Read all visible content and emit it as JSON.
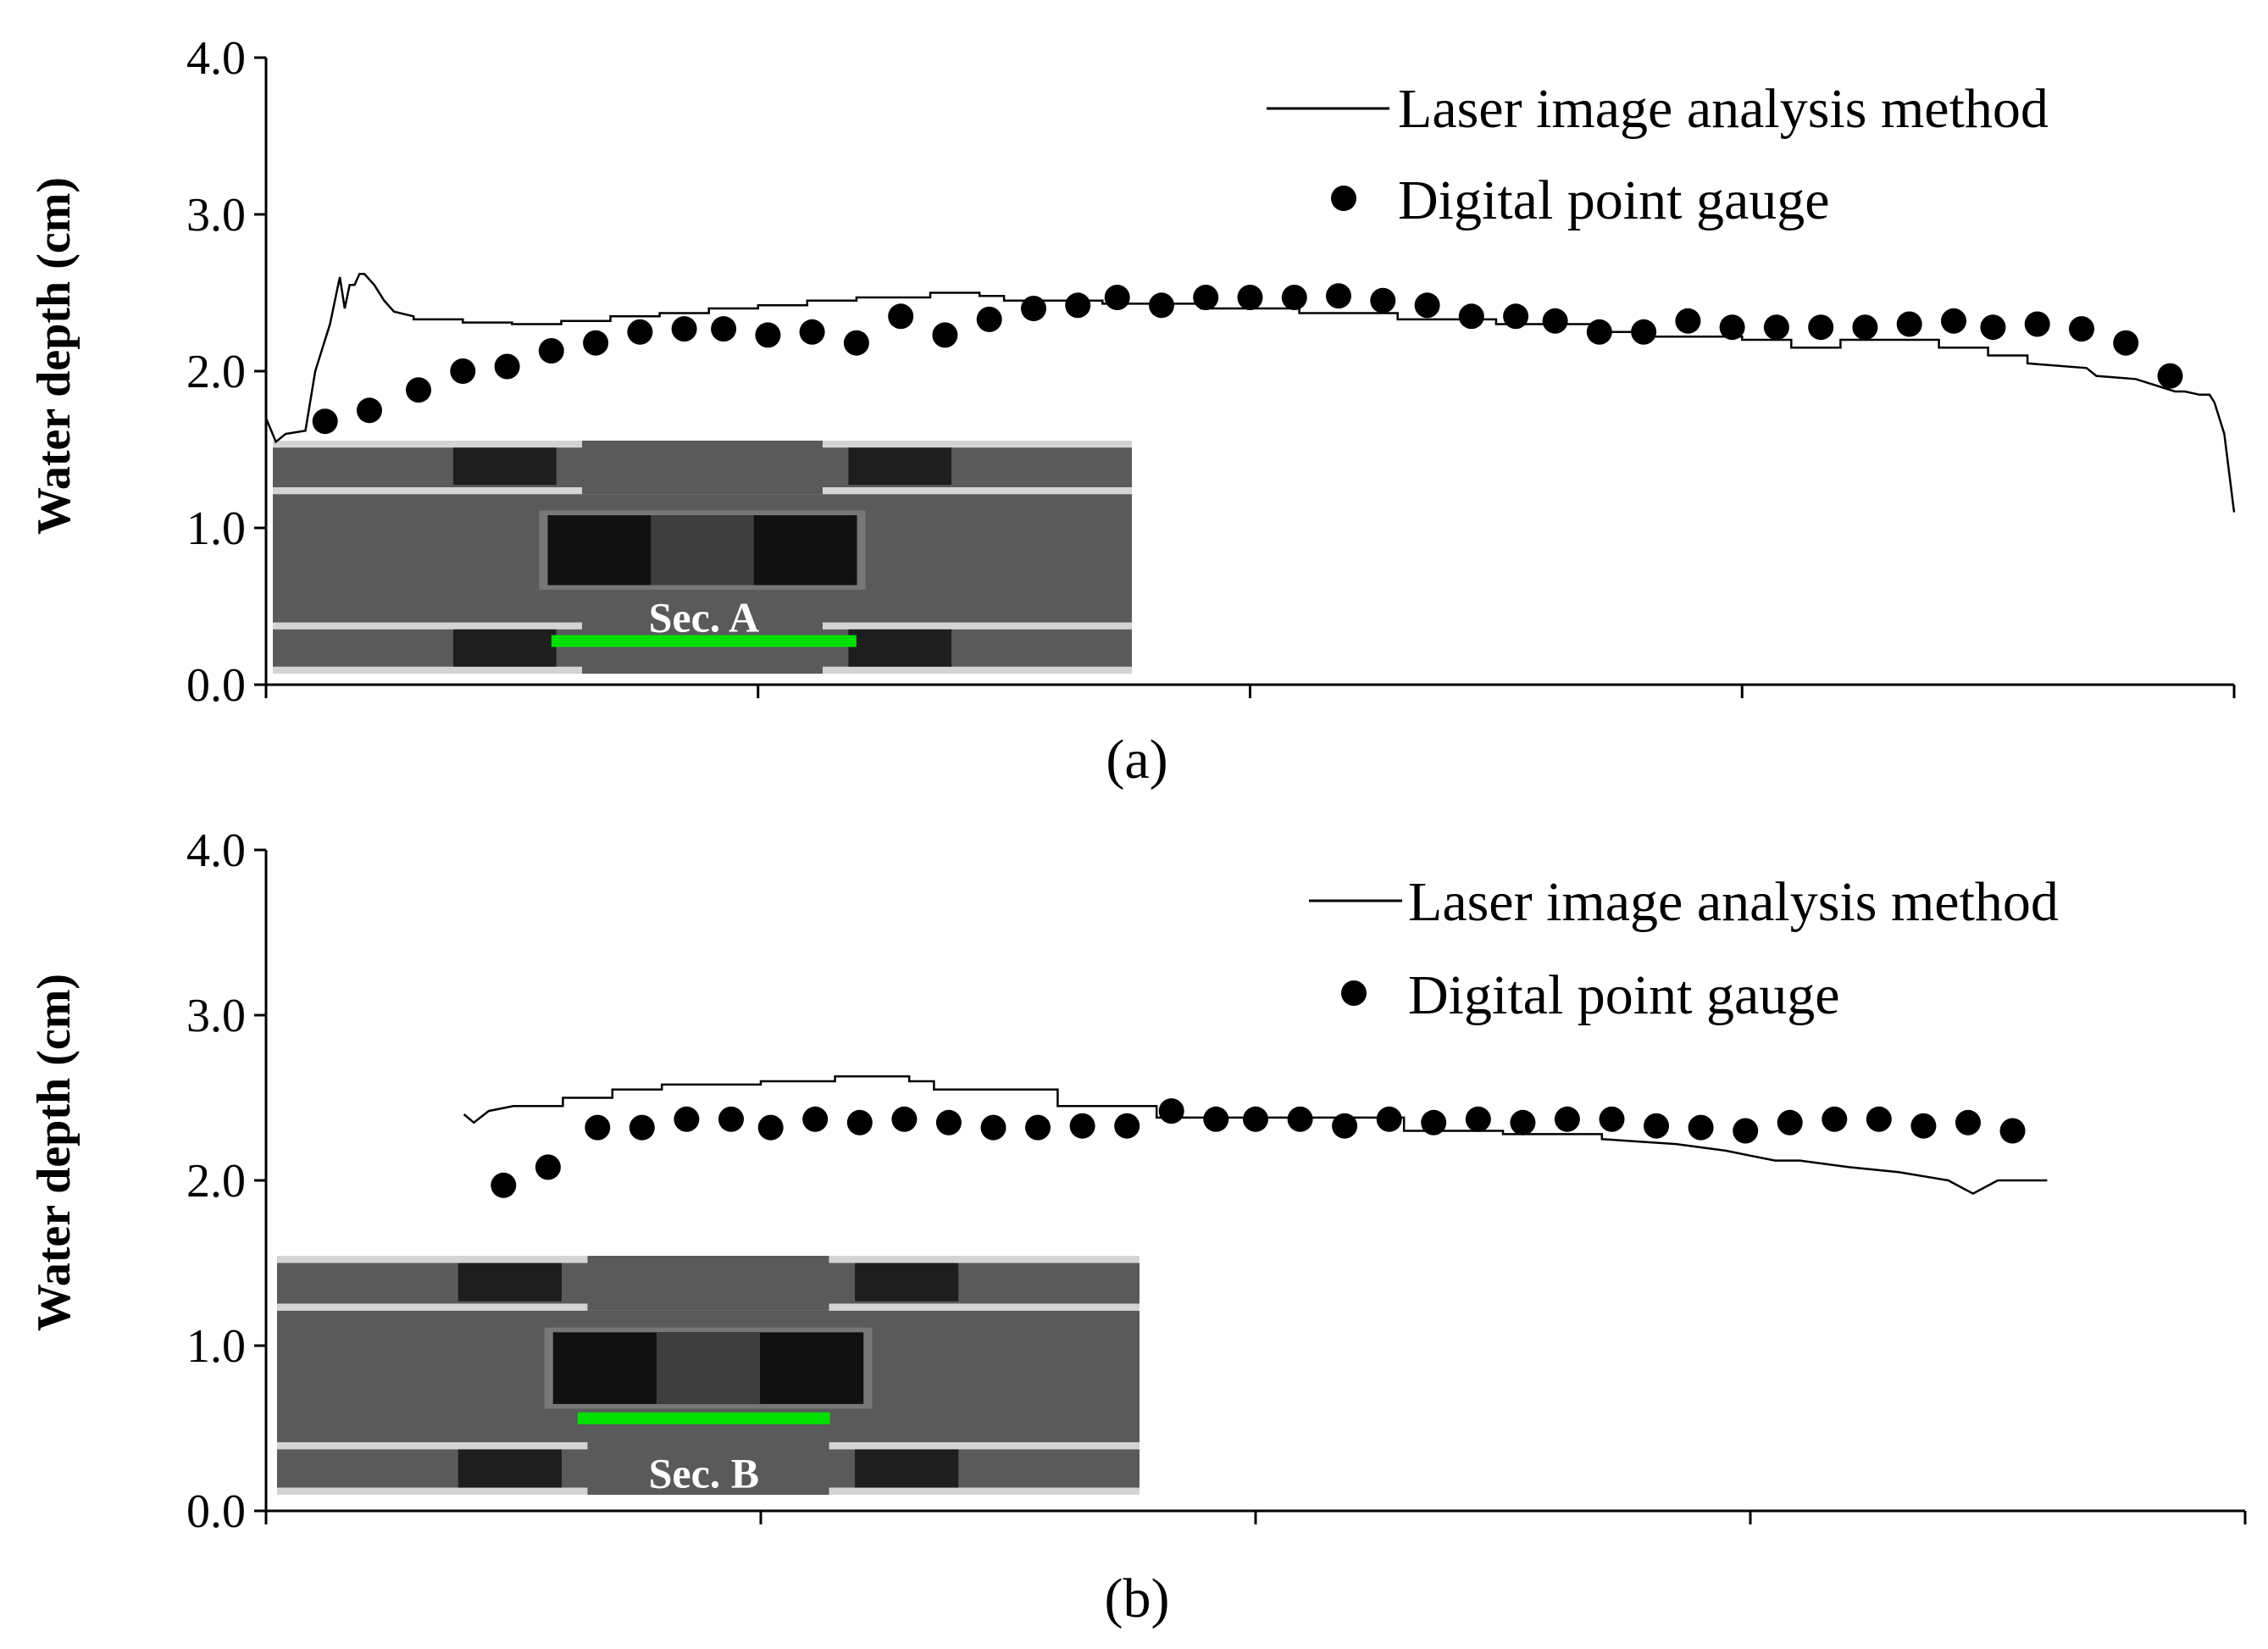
{
  "figure": {
    "panel_labels": [
      "(a)",
      "(b)"
    ],
    "colors": {
      "line": "#000000",
      "points": "#000000",
      "section_marker": "#00e000",
      "inset_bg": "#5a5a5a"
    }
  },
  "chart_data": [
    {
      "type": "line",
      "panel": "(a)",
      "ylabel": "Water depth (cm)",
      "xlabel": "",
      "ylim": [
        0,
        4
      ],
      "xlim": [
        0,
        4
      ],
      "yticks": [
        "0.0",
        "1.0",
        "2.0",
        "3.0",
        "4.0"
      ],
      "xticks": [
        0,
        1,
        2,
        3,
        4
      ],
      "grid": false,
      "legend_position": "top-right",
      "inset": {
        "label": "Sec. A",
        "marker_span": [
          0.58,
          1.2
        ]
      },
      "series": [
        {
          "name": "Laser image analysis method",
          "style": "line",
          "x": [
            0,
            0.02,
            0.04,
            0.08,
            0.1,
            0.13,
            0.15,
            0.16,
            0.17,
            0.18,
            0.19,
            0.2,
            0.22,
            0.24,
            0.26,
            0.3,
            0.3,
            0.34,
            0.4,
            0.4,
            0.5,
            0.5,
            0.6,
            0.6,
            0.7,
            0.7,
            0.8,
            0.8,
            0.9,
            0.9,
            1.0,
            1.0,
            1.1,
            1.1,
            1.2,
            1.2,
            1.35,
            1.35,
            1.45,
            1.45,
            1.5,
            1.5,
            1.7,
            1.7,
            1.9,
            1.9,
            2.1,
            2.1,
            2.3,
            2.3,
            2.5,
            2.5,
            2.7,
            2.7,
            2.8,
            2.8,
            3.0,
            3.0,
            3.1,
            3.1,
            3.2,
            3.2,
            3.4,
            3.4,
            3.5,
            3.5,
            3.58,
            3.58,
            3.7,
            3.72,
            3.8,
            3.85,
            3.88,
            3.9,
            3.93,
            3.95,
            3.96,
            3.98,
            3.99,
            4.0
          ],
          "y": [
            1.7,
            1.55,
            1.6,
            1.62,
            2.0,
            2.3,
            2.6,
            2.4,
            2.55,
            2.55,
            2.62,
            2.62,
            2.55,
            2.45,
            2.38,
            2.35,
            2.33,
            2.33,
            2.33,
            2.31,
            2.31,
            2.3,
            2.3,
            2.32,
            2.32,
            2.35,
            2.35,
            2.37,
            2.37,
            2.4,
            2.4,
            2.42,
            2.42,
            2.45,
            2.45,
            2.47,
            2.47,
            2.5,
            2.5,
            2.48,
            2.48,
            2.45,
            2.45,
            2.43,
            2.43,
            2.4,
            2.4,
            2.37,
            2.37,
            2.33,
            2.33,
            2.3,
            2.3,
            2.25,
            2.25,
            2.22,
            2.22,
            2.2,
            2.2,
            2.15,
            2.15,
            2.2,
            2.2,
            2.15,
            2.15,
            2.1,
            2.1,
            2.05,
            2.02,
            1.97,
            1.95,
            1.9,
            1.87,
            1.87,
            1.85,
            1.85,
            1.8,
            1.6,
            1.35,
            1.1
          ]
        },
        {
          "name": "Digital point gauge",
          "style": "scatter",
          "x": [
            0.12,
            0.21,
            0.31,
            0.4,
            0.49,
            0.58,
            0.67,
            0.76,
            0.85,
            0.93,
            1.02,
            1.11,
            1.2,
            1.29,
            1.38,
            1.47,
            1.56,
            1.65,
            1.73,
            1.82,
            1.91,
            2.0,
            2.09,
            2.18,
            2.27,
            2.36,
            2.45,
            2.54,
            2.62,
            2.71,
            2.8,
            2.89,
            2.98,
            3.07,
            3.16,
            3.25,
            3.34,
            3.43,
            3.51,
            3.6,
            3.69,
            3.78,
            3.87
          ],
          "y": [
            1.68,
            1.75,
            1.88,
            2.0,
            2.03,
            2.13,
            2.18,
            2.25,
            2.27,
            2.27,
            2.23,
            2.25,
            2.18,
            2.35,
            2.23,
            2.33,
            2.4,
            2.42,
            2.47,
            2.42,
            2.47,
            2.47,
            2.47,
            2.48,
            2.45,
            2.42,
            2.35,
            2.35,
            2.32,
            2.25,
            2.25,
            2.32,
            2.28,
            2.28,
            2.28,
            2.28,
            2.3,
            2.32,
            2.28,
            2.3,
            2.27,
            2.18,
            1.97
          ]
        }
      ]
    },
    {
      "type": "line",
      "panel": "(b)",
      "ylabel": "Water depth (cm)",
      "xlabel": "",
      "ylim": [
        0,
        4
      ],
      "xlim": [
        0,
        4
      ],
      "yticks": [
        "0.0",
        "1.0",
        "2.0",
        "3.0",
        "4.0"
      ],
      "xticks": [
        0,
        1,
        2,
        3,
        4
      ],
      "grid": false,
      "legend_position": "top-right",
      "inset": {
        "label": "Sec. B",
        "marker_span": [
          0.63,
          1.14
        ]
      },
      "series": [
        {
          "name": "Laser image analysis method",
          "style": "line",
          "x": [
            0.4,
            0.42,
            0.45,
            0.5,
            0.6,
            0.6,
            0.7,
            0.7,
            0.8,
            0.8,
            1.0,
            1.0,
            1.15,
            1.15,
            1.3,
            1.3,
            1.35,
            1.35,
            1.6,
            1.6,
            1.8,
            1.8,
            2.3,
            2.3,
            2.5,
            2.5,
            2.7,
            2.7,
            2.85,
            2.95,
            3.0,
            3.05,
            3.1,
            3.15,
            3.2,
            3.3,
            3.4,
            3.45,
            3.5,
            3.6
          ],
          "y": [
            2.4,
            2.35,
            2.42,
            2.45,
            2.45,
            2.5,
            2.5,
            2.55,
            2.55,
            2.58,
            2.58,
            2.6,
            2.6,
            2.63,
            2.63,
            2.6,
            2.6,
            2.55,
            2.55,
            2.45,
            2.45,
            2.38,
            2.38,
            2.3,
            2.3,
            2.28,
            2.28,
            2.25,
            2.22,
            2.18,
            2.15,
            2.12,
            2.12,
            2.1,
            2.08,
            2.05,
            2.0,
            1.92,
            2.0,
            2.0
          ]
        },
        {
          "name": "Digital point gauge",
          "style": "scatter",
          "x": [
            0.48,
            0.57,
            0.67,
            0.76,
            0.85,
            0.94,
            1.02,
            1.11,
            1.2,
            1.29,
            1.38,
            1.47,
            1.56,
            1.65,
            1.74,
            1.83,
            1.92,
            2.0,
            2.09,
            2.18,
            2.27,
            2.36,
            2.45,
            2.54,
            2.63,
            2.72,
            2.81,
            2.9,
            2.99,
            3.08,
            3.17,
            3.26,
            3.35,
            3.44,
            3.53
          ],
          "y": [
            1.97,
            2.08,
            2.32,
            2.32,
            2.37,
            2.37,
            2.32,
            2.37,
            2.35,
            2.37,
            2.35,
            2.32,
            2.32,
            2.33,
            2.33,
            2.42,
            2.37,
            2.37,
            2.37,
            2.33,
            2.37,
            2.35,
            2.37,
            2.35,
            2.37,
            2.37,
            2.33,
            2.32,
            2.3,
            2.35,
            2.37,
            2.37,
            2.33,
            2.35,
            2.3
          ]
        }
      ]
    }
  ]
}
